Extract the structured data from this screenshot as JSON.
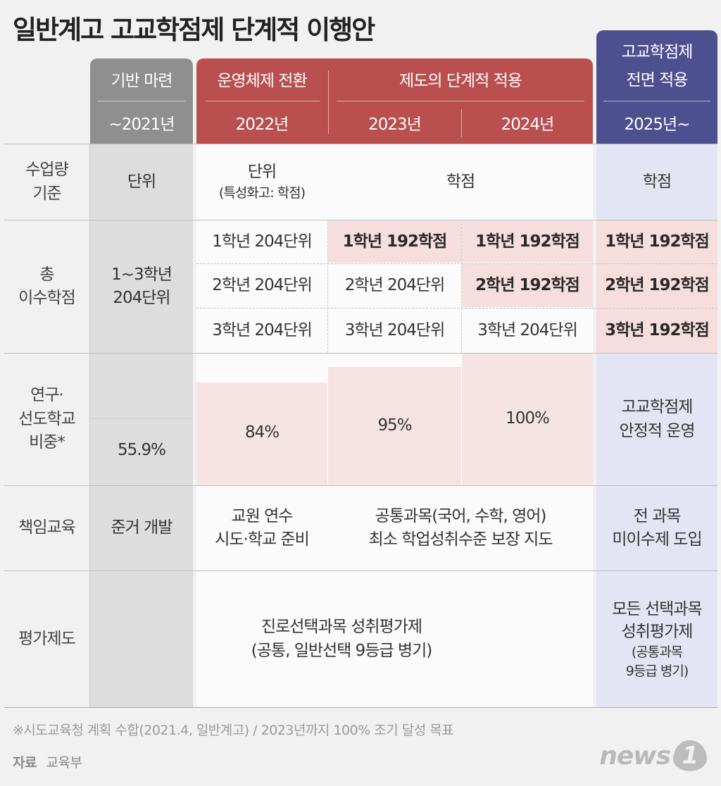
{
  "title": "일반계고 고교학점제 단계적 이행안",
  "colors": {
    "gray_header": "#8f8f8f",
    "red_header": "#b94f4f",
    "blue_header": "#4d508f",
    "pink_fill": "#f7dede",
    "blue_fill": "#e4e5f4"
  },
  "header": {
    "phase1": {
      "label": "기반 마련",
      "years": "~2021년"
    },
    "phase2": {
      "label": "운영체제 전환",
      "years": "2022년"
    },
    "phase3": {
      "label": "제도의 단계적 적용",
      "years": [
        "2023년",
        "2024년"
      ]
    },
    "phase4": {
      "label_line1": "고교학점제",
      "label_line2": "전면 적용",
      "years": "2025년~"
    }
  },
  "rows": {
    "hours": {
      "label_line1": "수업량",
      "label_line2": "기준",
      "c2021": "단위",
      "c2022_line1": "단위",
      "c2022_line2": "(특성화고: 학점)",
      "c2023_2024": "학점",
      "c2025": "학점"
    },
    "credits": {
      "label_line1": "총",
      "label_line2": "이수학점",
      "c2021_line1": "1~3학년",
      "c2021_line2": "204단위",
      "c2022": [
        "1학년 204단위",
        "2학년 204단위",
        "3학년 204단위"
      ],
      "c2023": [
        "1학년 192학점",
        "2학년 204단위",
        "3학년 204단위"
      ],
      "c2024": [
        "1학년 192학점",
        "2학년 192학점",
        "3학년 204단위"
      ],
      "c2025": [
        "1학년 192학점",
        "2학년 192학점",
        "3학년 192학점"
      ]
    },
    "ratio": {
      "label_line1": "연구·",
      "label_line2": "선도학교",
      "label_line3": "비중*",
      "c2021": "55.9%",
      "c2022": "84%",
      "c2023": "95%",
      "c2024": "100%",
      "c2025_line1": "고교학점제",
      "c2025_line2": "안정적 운영"
    },
    "responsibility": {
      "label": "책임교육",
      "c2021": "준거 개발",
      "c2022_line1": "교원 연수",
      "c2022_line2": "시도·학교 준비",
      "c2023_2024_line1": "공통과목(국어, 수학, 영어)",
      "c2023_2024_line2": "최소 학업성취수준 보장 지도",
      "c2025_line1": "전 과목",
      "c2025_line2": "미이수제 도입"
    },
    "evaluation": {
      "label": "평가제도",
      "c2021_2024_line1": "진로선택과목 성취평가제",
      "c2021_2024_line2": "(공통, 일반선택 9등급 병기)",
      "c2025_line1": "모든 선택과목",
      "c2025_line2": "성취평가제",
      "c2025_line3": "(공통과목",
      "c2025_line4": "9등급 병기)"
    }
  },
  "footnote": "※시도교육청 계획 수합(2021.4, 일반계고) / 2023년까지 100% 조기 달성 목표",
  "source_label": "자료",
  "source_value": "교육부",
  "logo": {
    "text": "news",
    "mark": "1"
  }
}
